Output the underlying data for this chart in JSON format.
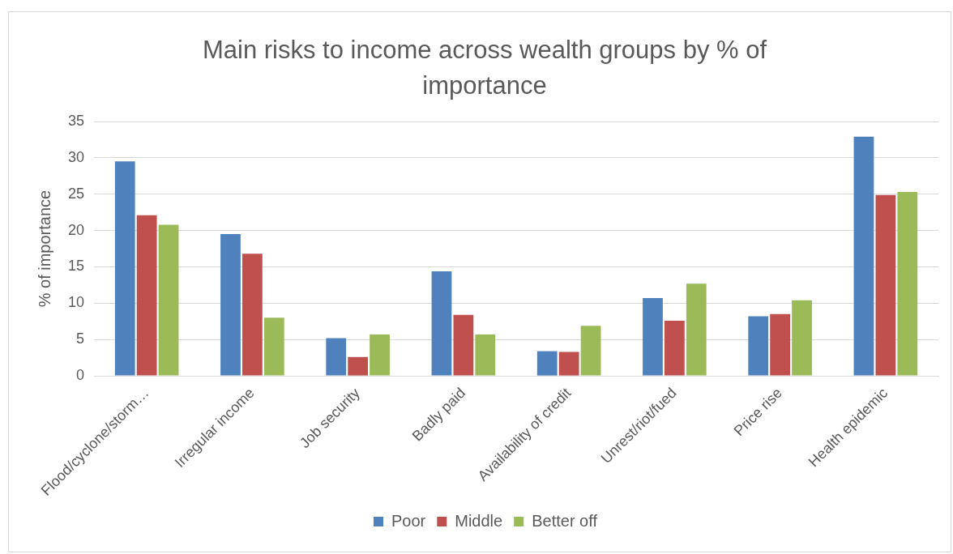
{
  "chart_data": {
    "type": "bar",
    "title": "Main risks to income across wealth groups by % of importance",
    "ylabel": "% of importance",
    "categories": [
      "Flood/cyclone/storm…",
      "Irregular income",
      "Job security",
      "Badly paid",
      "Availability of credit",
      "Unrest/riot/fued",
      "Price rise",
      "Health epidemic"
    ],
    "series": [
      {
        "name": "Poor",
        "color": "#4f81bd",
        "values": [
          29.5,
          19.5,
          5.2,
          14.4,
          3.4,
          10.7,
          8.2,
          32.9
        ]
      },
      {
        "name": "Middle",
        "color": "#c0504d",
        "values": [
          22.1,
          16.8,
          2.6,
          8.4,
          3.3,
          7.6,
          8.5,
          24.9
        ]
      },
      {
        "name": "Better off",
        "color": "#9bbb59",
        "values": [
          20.8,
          8.0,
          5.7,
          5.7,
          6.9,
          12.7,
          10.4,
          25.3
        ]
      }
    ],
    "ylim": [
      0,
      35
    ],
    "yticks": [
      0,
      5,
      10,
      15,
      20,
      25,
      30,
      35
    ],
    "grid": "y",
    "legend": "bottom"
  }
}
